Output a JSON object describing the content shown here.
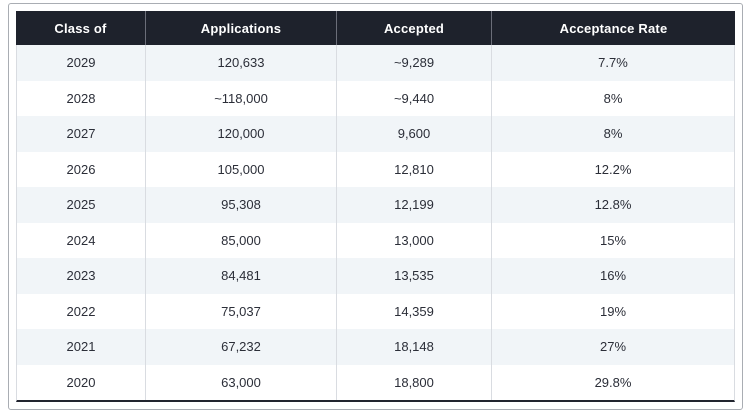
{
  "chart_data": {
    "type": "table",
    "columns": [
      "Class of",
      "Applications",
      "Accepted",
      "Acceptance Rate"
    ],
    "rows": [
      [
        "2029",
        "120,633",
        "~9,289",
        "7.7%"
      ],
      [
        "2028",
        "~118,000",
        "~9,440",
        "8%"
      ],
      [
        "2027",
        "120,000",
        "9,600",
        "8%"
      ],
      [
        "2026",
        "105,000",
        "12,810",
        "12.2%"
      ],
      [
        "2025",
        "95,308",
        "12,199",
        "12.8%"
      ],
      [
        "2024",
        "85,000",
        "13,000",
        "15%"
      ],
      [
        "2023",
        "84,481",
        "13,535",
        "16%"
      ],
      [
        "2022",
        "75,037",
        "14,359",
        "19%"
      ],
      [
        "2021",
        "67,232",
        "18,148",
        "27%"
      ],
      [
        "2020",
        "63,000",
        "18,800",
        "29.8%"
      ]
    ]
  },
  "colors": {
    "header_bg": "#1e222c",
    "header_text": "#ffffff",
    "row_alt_bg": "#f1f5f8",
    "row_bg": "#ffffff",
    "body_text": "#2b2e38",
    "divider": "#d9dce1",
    "header_divider": "#6b6e79",
    "table_bottom_border": "#22252f",
    "frame_border": "#a9adb3"
  }
}
